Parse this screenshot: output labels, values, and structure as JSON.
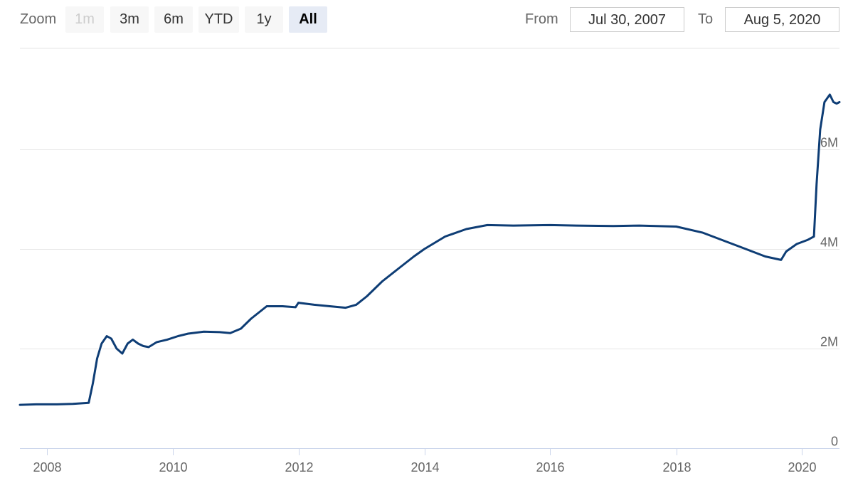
{
  "range_selector": {
    "zoom_label": "Zoom",
    "buttons": [
      {
        "label": "1m",
        "state": "disabled"
      },
      {
        "label": "3m",
        "state": "normal"
      },
      {
        "label": "6m",
        "state": "normal"
      },
      {
        "label": "YTD",
        "state": "normal"
      },
      {
        "label": "1y",
        "state": "normal"
      },
      {
        "label": "All",
        "state": "selected"
      }
    ],
    "from_label": "From",
    "from_value": "Jul 30, 2007",
    "to_label": "To",
    "to_value": "Aug 5, 2020"
  },
  "colors": {
    "line": "#0e3d75",
    "grid": "#e6e6e6",
    "axis_text": "#666666"
  },
  "chart_data": {
    "type": "line",
    "title": "",
    "xlabel": "",
    "ylabel": "",
    "x_range": [
      "2007-07-30",
      "2020-08-05"
    ],
    "ylim": [
      0,
      8000000
    ],
    "grid": true,
    "legend": "none",
    "x_ticks": [
      {
        "date": "2008-01-01",
        "label": "2008"
      },
      {
        "date": "2010-01-01",
        "label": "2010"
      },
      {
        "date": "2012-01-01",
        "label": "2012"
      },
      {
        "date": "2014-01-01",
        "label": "2014"
      },
      {
        "date": "2016-01-01",
        "label": "2016"
      },
      {
        "date": "2018-01-01",
        "label": "2018"
      },
      {
        "date": "2020-01-01",
        "label": "2020"
      }
    ],
    "y_ticks": [
      {
        "value": 0,
        "label": "0"
      },
      {
        "value": 2000000,
        "label": "2M"
      },
      {
        "value": 4000000,
        "label": "4M"
      },
      {
        "value": 6000000,
        "label": "6M"
      }
    ],
    "series": [
      {
        "points": [
          [
            "2007-07-30",
            870000
          ],
          [
            "2007-11-01",
            880000
          ],
          [
            "2008-01-01",
            880000
          ],
          [
            "2008-03-01",
            880000
          ],
          [
            "2008-06-01",
            890000
          ],
          [
            "2008-09-01",
            910000
          ],
          [
            "2008-09-25",
            1300000
          ],
          [
            "2008-10-20",
            1800000
          ],
          [
            "2008-11-15",
            2100000
          ],
          [
            "2008-12-15",
            2250000
          ],
          [
            "2009-01-10",
            2200000
          ],
          [
            "2009-02-10",
            2000000
          ],
          [
            "2009-03-15",
            1900000
          ],
          [
            "2009-04-15",
            2100000
          ],
          [
            "2009-05-15",
            2180000
          ],
          [
            "2009-06-15",
            2100000
          ],
          [
            "2009-07-15",
            2050000
          ],
          [
            "2009-08-15",
            2030000
          ],
          [
            "2009-10-01",
            2130000
          ],
          [
            "2009-12-01",
            2180000
          ],
          [
            "2010-02-01",
            2250000
          ],
          [
            "2010-04-01",
            2300000
          ],
          [
            "2010-07-01",
            2340000
          ],
          [
            "2010-10-01",
            2330000
          ],
          [
            "2010-12-01",
            2310000
          ],
          [
            "2011-02-01",
            2400000
          ],
          [
            "2011-04-01",
            2600000
          ],
          [
            "2011-07-01",
            2850000
          ],
          [
            "2011-10-01",
            2850000
          ],
          [
            "2011-12-15",
            2830000
          ],
          [
            "2012-01-01",
            2920000
          ],
          [
            "2012-04-01",
            2880000
          ],
          [
            "2012-07-01",
            2850000
          ],
          [
            "2012-10-01",
            2820000
          ],
          [
            "2012-12-01",
            2880000
          ],
          [
            "2013-02-01",
            3050000
          ],
          [
            "2013-05-01",
            3350000
          ],
          [
            "2013-08-01",
            3600000
          ],
          [
            "2013-11-01",
            3850000
          ],
          [
            "2014-01-01",
            4000000
          ],
          [
            "2014-05-01",
            4250000
          ],
          [
            "2014-09-01",
            4400000
          ],
          [
            "2015-01-01",
            4480000
          ],
          [
            "2015-06-01",
            4470000
          ],
          [
            "2016-01-01",
            4480000
          ],
          [
            "2016-06-01",
            4470000
          ],
          [
            "2017-01-01",
            4460000
          ],
          [
            "2017-06-01",
            4470000
          ],
          [
            "2018-01-01",
            4450000
          ],
          [
            "2018-06-01",
            4330000
          ],
          [
            "2019-01-01",
            4050000
          ],
          [
            "2019-06-01",
            3850000
          ],
          [
            "2019-09-01",
            3780000
          ],
          [
            "2019-10-01",
            3950000
          ],
          [
            "2019-12-01",
            4100000
          ],
          [
            "2020-02-01",
            4180000
          ],
          [
            "2020-03-10",
            4250000
          ],
          [
            "2020-03-25",
            5300000
          ],
          [
            "2020-04-15",
            6400000
          ],
          [
            "2020-05-10",
            6950000
          ],
          [
            "2020-06-10",
            7100000
          ],
          [
            "2020-07-01",
            6950000
          ],
          [
            "2020-07-20",
            6920000
          ],
          [
            "2020-08-05",
            6950000
          ]
        ]
      }
    ]
  }
}
